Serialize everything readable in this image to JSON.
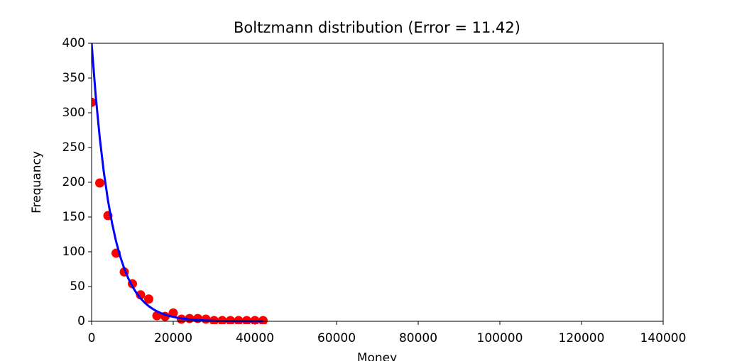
{
  "chart_data": {
    "type": "scatter",
    "title": "Boltzmann distribution (Error = 11.42)",
    "xlabel": "Money",
    "ylabel": "Frequancy",
    "xlim": [
      0,
      140000
    ],
    "ylim": [
      0,
      400
    ],
    "xticks": [
      0,
      20000,
      40000,
      60000,
      80000,
      100000,
      120000,
      140000
    ],
    "yticks": [
      0,
      50,
      100,
      150,
      200,
      250,
      300,
      350,
      400
    ],
    "series": [
      {
        "kind": "scatter",
        "color": "#ff0000",
        "x": [
          0,
          2000,
          4000,
          6000,
          8000,
          10000,
          12000,
          14000,
          16000,
          18000,
          20000,
          22000,
          24000,
          26000,
          28000,
          30000,
          32000,
          34000,
          36000,
          38000,
          40000,
          42000
        ],
        "values": [
          315,
          199,
          152,
          98,
          71,
          54,
          38,
          32,
          8,
          7,
          12,
          3,
          4,
          4,
          3,
          1,
          1,
          1,
          1,
          1,
          1,
          1
        ]
      },
      {
        "kind": "line",
        "color": "#0000ff",
        "x": [
          0,
          1000,
          2000,
          3000,
          4000,
          5000,
          6000,
          7000,
          8000,
          9000,
          10000,
          11000,
          12000,
          13000,
          14000,
          15000,
          16000,
          17000,
          18000,
          19000,
          20000,
          21000,
          22000,
          23000,
          24000,
          25000,
          26000,
          27000,
          28000,
          29000,
          30000,
          31000,
          32000,
          33000,
          34000,
          35000,
          36000,
          37000,
          38000,
          39000,
          40000,
          41000,
          42000
        ],
        "values": [
          400,
          324.9,
          263.9,
          214.4,
          174.2,
          141.5,
          114.9,
          93.4,
          75.8,
          61.6,
          50.0,
          40.6,
          33.0,
          26.8,
          21.8,
          17.7,
          14.4,
          11.7,
          9.5,
          7.7,
          6.3,
          5.1,
          4.1,
          3.4,
          2.7,
          2.2,
          1.8,
          1.5,
          1.2,
          1.0,
          0.8,
          0.6,
          0.5,
          0.4,
          0.3,
          0.3,
          0.2,
          0.2,
          0.1,
          0.1,
          0.1,
          0.1,
          0.1
        ]
      }
    ]
  }
}
